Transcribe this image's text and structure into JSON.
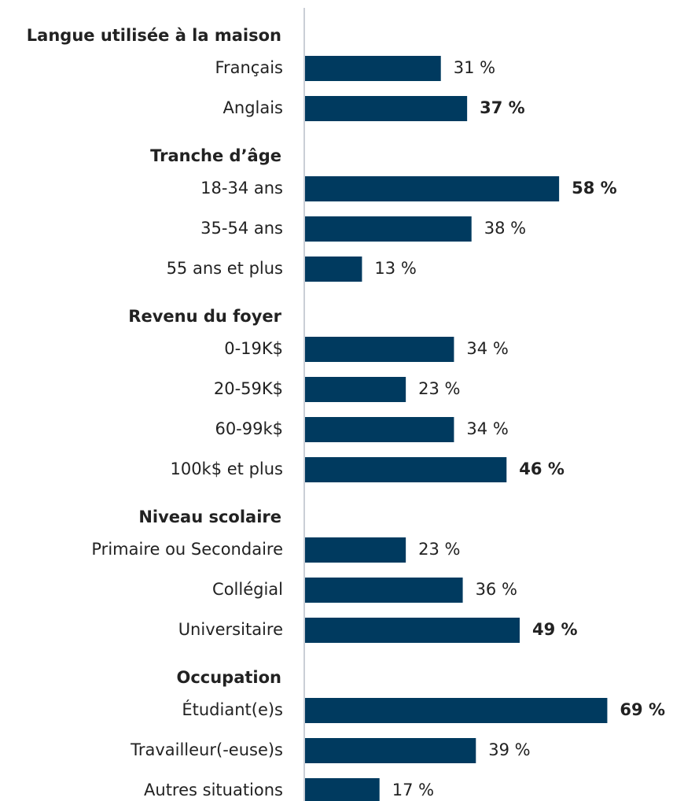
{
  "chart_data": {
    "type": "bar",
    "orientation": "horizontal",
    "color": "#003a5f",
    "xlim": [
      0,
      84
    ],
    "groups": [
      {
        "name": "Langue utilisée à la maison",
        "categories": [
          "Français",
          "Anglais"
        ],
        "values": [
          31,
          37
        ],
        "value_labels": [
          "31 %",
          "37 %"
        ],
        "highlight": [
          false,
          true
        ]
      },
      {
        "name": "Tranche d’âge",
        "categories": [
          "18-34 ans",
          "35-54 ans",
          "55 ans et plus"
        ],
        "values": [
          58,
          38,
          13
        ],
        "value_labels": [
          "58 %",
          "38 %",
          "13 %"
        ],
        "highlight": [
          true,
          false,
          false
        ]
      },
      {
        "name": "Revenu du foyer",
        "categories": [
          "0-19K$",
          "20-59K$",
          "60-99k$",
          "100k$ et plus"
        ],
        "values": [
          34,
          23,
          34,
          46
        ],
        "value_labels": [
          "34 %",
          "23 %",
          "34 %",
          "46 %"
        ],
        "highlight": [
          false,
          false,
          false,
          true
        ]
      },
      {
        "name": "Niveau scolaire",
        "categories": [
          "Primaire ou Secondaire",
          "Collégial",
          "Universitaire"
        ],
        "values": [
          23,
          36,
          49
        ],
        "value_labels": [
          "23 %",
          "36 %",
          "49 %"
        ],
        "highlight": [
          false,
          false,
          true
        ]
      },
      {
        "name": "Occupation",
        "categories": [
          "Étudiant(e)s",
          "Travailleur(-euse)s",
          "Autres situations"
        ],
        "values": [
          69,
          39,
          17
        ],
        "value_labels": [
          "69 %",
          "39 %",
          "17 %"
        ],
        "highlight": [
          true,
          false,
          false
        ]
      }
    ]
  }
}
